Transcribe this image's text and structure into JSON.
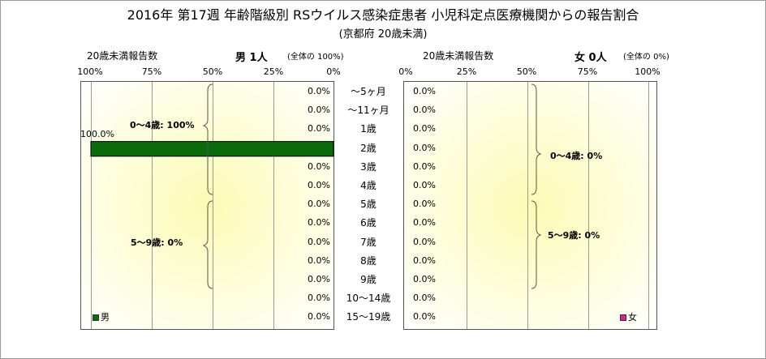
{
  "title": "2016年 第17週 年齢階級別 RSウイルス感染症患者 小児科定点医療機関からの報告割合",
  "subtitle": "(京都府 20歳未満)",
  "left_header": {
    "label": "20歳未満報告数",
    "sex_count": "男 1人",
    "share": "(全体の  100%)"
  },
  "right_header": {
    "label": "20歳未満報告数",
    "sex_count": "女 0人",
    "share": "(全体の  0%)"
  },
  "colors": {
    "male": "#0b6b0b",
    "female": "#e0208a",
    "panel_center": "#fbfbb4"
  },
  "chart_data": {
    "type": "bar",
    "categories": [
      "～5ヶ月",
      "～11ヶ月",
      "1歳",
      "2歳",
      "3歳",
      "4歳",
      "5歳",
      "6歳",
      "7歳",
      "8歳",
      "9歳",
      "10～14歳",
      "15～19歳"
    ],
    "left_ticks": [
      "100%",
      "75%",
      "50%",
      "25%",
      "0%"
    ],
    "right_ticks": [
      "0%",
      "25%",
      "50%",
      "75%",
      "100%"
    ],
    "xlim": [
      0,
      100
    ],
    "series": [
      {
        "name": "男",
        "values": [
          0,
          0,
          0,
          100,
          0,
          0,
          0,
          0,
          0,
          0,
          0,
          0,
          0
        ],
        "labels": [
          "0.0%",
          "0.0%",
          "0.0%",
          "100.0%",
          "0.0%",
          "0.0%",
          "0.0%",
          "0.0%",
          "0.0%",
          "0.0%",
          "0.0%",
          "0.0%",
          "0.0%"
        ]
      },
      {
        "name": "女",
        "values": [
          0,
          0,
          0,
          0,
          0,
          0,
          0,
          0,
          0,
          0,
          0,
          0,
          0
        ],
        "labels": [
          "0.0%",
          "0.0%",
          "0.0%",
          "0.0%",
          "0.0%",
          "0.0%",
          "0.0%",
          "0.0%",
          "0.0%",
          "0.0%",
          "0.0%",
          "0.0%",
          "0.0%"
        ]
      }
    ],
    "groups": {
      "left": [
        {
          "label": "0～4歳: 100%",
          "from": 0,
          "to": 5
        },
        {
          "label": "5～9歳: 0%",
          "from": 6,
          "to": 10
        }
      ],
      "right": [
        {
          "label": "0～4歳: 0%",
          "from": 0,
          "to": 5
        },
        {
          "label": "5～9歳: 0%",
          "from": 6,
          "to": 10
        }
      ]
    }
  }
}
